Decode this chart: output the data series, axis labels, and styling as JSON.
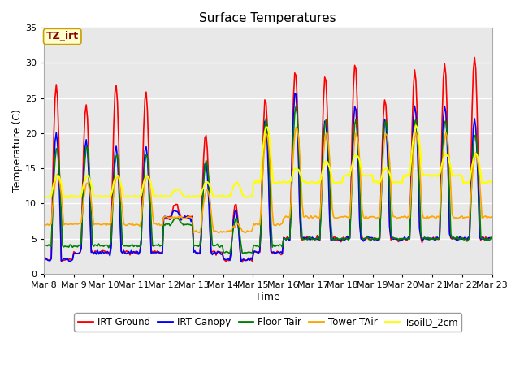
{
  "title": "Surface Temperatures",
  "xlabel": "Time",
  "ylabel": "Temperature (C)",
  "ylim": [
    0,
    35
  ],
  "background_color": "#e8e8e8",
  "grid_color": "white",
  "annotation_text": "TZ_irt",
  "annotation_color": "#8B0000",
  "annotation_bg": "#ffffcc",
  "annotation_border": "#c8a000",
  "x_tick_labels": [
    "Mar 8",
    "Mar 9",
    "Mar 10",
    "Mar 11",
    "Mar 12",
    "Mar 13",
    "Mar 14",
    "Mar 15",
    "Mar 16",
    "Mar 17",
    "Mar 18",
    "Mar 19",
    "Mar 20",
    "Mar 21",
    "Mar 22",
    "Mar 23"
  ],
  "legend_entries": [
    "IRT Ground",
    "IRT Canopy",
    "Floor Tair",
    "Tower TAir",
    "TsoilD_2cm"
  ],
  "legend_colors": [
    "red",
    "blue",
    "green",
    "orange",
    "yellow"
  ],
  "series_colors": [
    "red",
    "blue",
    "green",
    "orange",
    "yellow"
  ],
  "series_lw": [
    1.2,
    1.2,
    1.2,
    1.2,
    1.5
  ],
  "days": 15,
  "pts_per_day": 24
}
